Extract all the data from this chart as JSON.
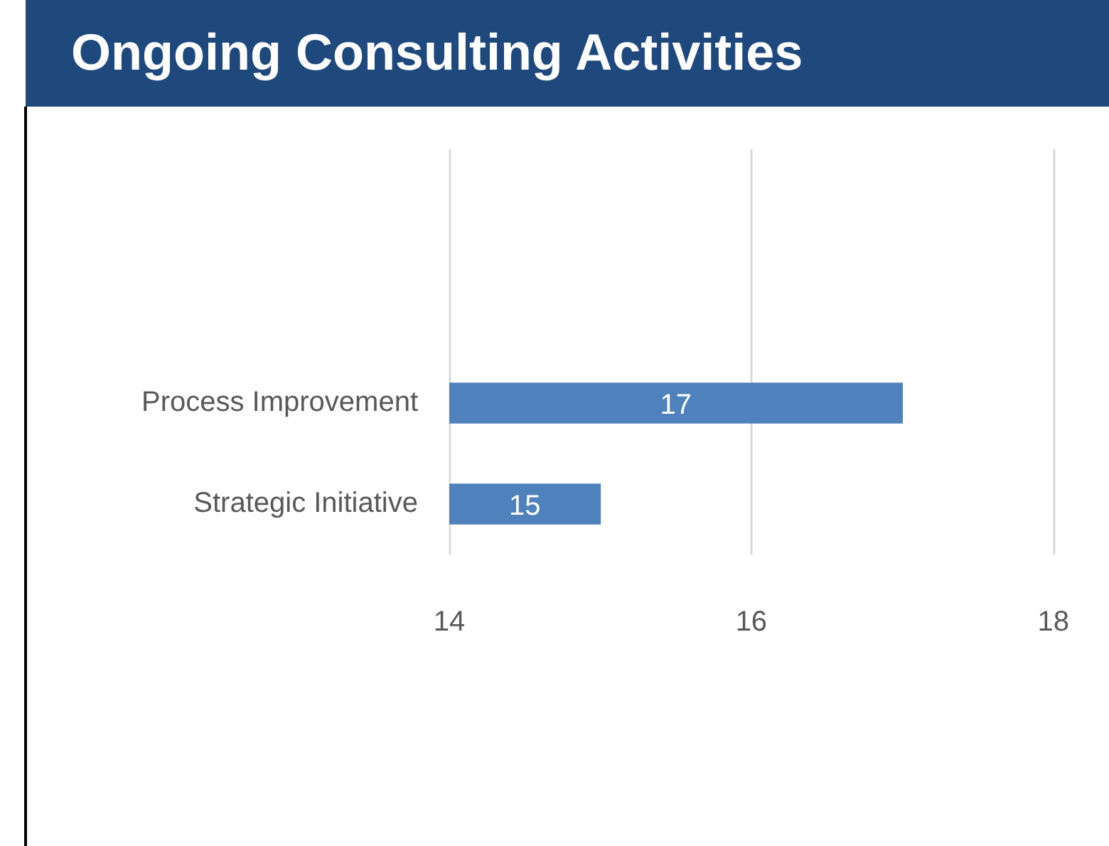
{
  "chart_data": {
    "type": "bar",
    "orientation": "horizontal",
    "title": "Ongoing Consulting Activities",
    "categories": [
      "Process Improvement",
      "Strategic Initiative"
    ],
    "values": [
      17,
      15
    ],
    "color": "#4f81bd",
    "xlim": [
      14,
      18
    ],
    "xticks": [
      14,
      16,
      18
    ],
    "grid": "x",
    "data_labels": true,
    "legend": false
  }
}
